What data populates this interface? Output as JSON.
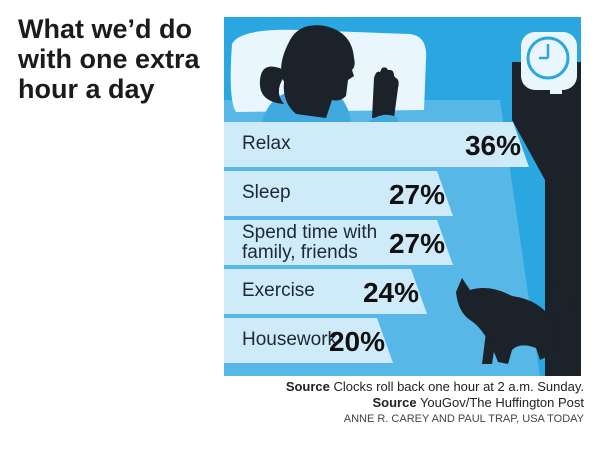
{
  "title": "What we’d do with one extra hour a day",
  "chart_data": {
    "type": "bar",
    "title": "What we’d do with one extra hour a day",
    "categories": [
      "Relax",
      "Sleep",
      "Spend time with family, friends",
      "Exercise",
      "Housework"
    ],
    "category_lines": [
      [
        "Relax"
      ],
      [
        "Sleep"
      ],
      [
        "Spend time with",
        "family, friends"
      ],
      [
        "Exercise"
      ],
      [
        "Housework"
      ]
    ],
    "values": [
      36,
      27,
      27,
      24,
      20
    ],
    "value_labels": [
      "36%",
      "27%",
      "27%",
      "24%",
      "20%"
    ],
    "unit": "%",
    "orientation": "horizontal"
  },
  "footer": {
    "note_prefix": "Source",
    "note_text": " Clocks roll back one hour at 2 a.m. Sunday.",
    "source_prefix": "Source",
    "source_text": " YouGov/The Huffington Post",
    "credit": "ANNE R. CAREY AND PAUL TRAP, USA TODAY"
  },
  "colors": {
    "panel_bg": "#2aa6e0",
    "bar_fill": "#cfeaf8",
    "dark": "#1b2229",
    "pillow": "#eaf6fd",
    "shirt": "#3fa9e0"
  }
}
